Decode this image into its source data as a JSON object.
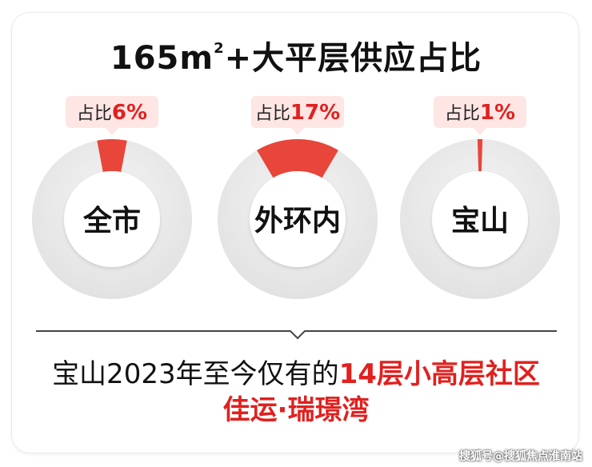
{
  "title": {
    "prefix": "165m",
    "sup": "2",
    "suffix": "+大平层供应占比"
  },
  "chart_data": {
    "type": "pie",
    "variant": "donut",
    "categories": [
      "全市",
      "外环内",
      "宝山"
    ],
    "values": [
      6,
      17,
      1
    ],
    "unit": "%",
    "badge_prefix": "占比",
    "colors": {
      "slice": "#e8463a",
      "track": "#ebebeb",
      "center": "#ffffff",
      "badge_bg": "#fde6e4",
      "badge_text": "#e0211f"
    }
  },
  "summary": {
    "line1_plain": "宝山2023年至今仅有的",
    "line1_highlight": "14层小高层社区",
    "line2": "佳运·瑞璟湾"
  },
  "watermark": "搜狐号@搜狐焦点淮南站"
}
